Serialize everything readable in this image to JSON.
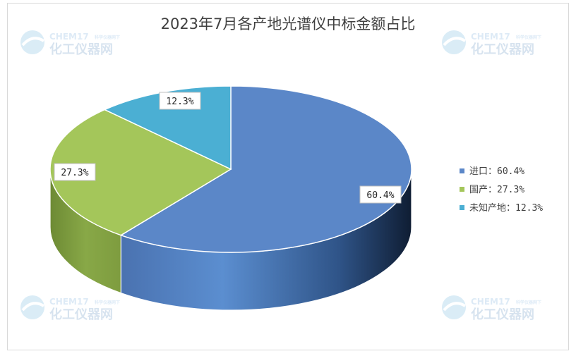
{
  "chart_data": {
    "type": "pie",
    "title": "2023年7月各产地光谱仪中标金额占比",
    "categories": [
      "进口",
      "国产",
      "未知产地"
    ],
    "values": [
      60.4,
      27.3,
      12.3
    ],
    "data_labels": [
      "60.4%",
      "27.3%",
      "12.3%"
    ],
    "legend_entries": [
      "进口：60.4%",
      "国产：27.3%",
      "未知产地：12.3%"
    ],
    "colors": [
      "#5b87c8",
      "#a4c65a",
      "#4bafd3"
    ],
    "legend_position": "right",
    "style": "3d"
  },
  "watermark": {
    "brand": "CHEM17",
    "tagline": "科学仪器网下",
    "name": "化工仪器网"
  }
}
